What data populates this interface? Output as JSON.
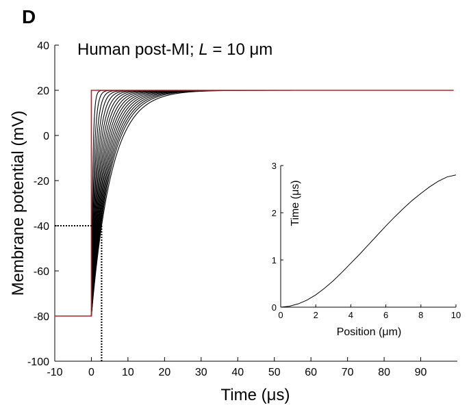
{
  "panel_label": "D",
  "chart_data": [
    {
      "type": "line",
      "title": "Human post-MI; L = 10 μm",
      "title_prefix": "Human post-MI; ",
      "title_italic": "L",
      "title_suffix": " = 10 μm",
      "xlabel": "Time (μs)",
      "ylabel": "Membrane potential (mV)",
      "xlim": [
        -10,
        100
      ],
      "ylim": [
        -100,
        40
      ],
      "xticks": [
        -10,
        0,
        10,
        20,
        30,
        40,
        50,
        60,
        70,
        80,
        90
      ],
      "yticks": [
        -100,
        -80,
        -60,
        -40,
        -20,
        0,
        20,
        40
      ],
      "grid": false,
      "colors": {
        "stimulus": "#b2242a",
        "responses": "#000000",
        "threshold_marker": "#000000"
      },
      "stimulus_trace": {
        "x": [
          -10,
          0,
          0,
          99
        ],
        "y": [
          -80,
          -80,
          20,
          20
        ]
      },
      "response_family": {
        "count": 18,
        "resting_potential": -80,
        "plateau": 20,
        "step_time": 0,
        "crossing_level": -40,
        "crossing_times": [
          0.2,
          0.35,
          0.5,
          0.65,
          0.8,
          0.95,
          1.1,
          1.25,
          1.4,
          1.55,
          1.7,
          1.85,
          2.0,
          2.15,
          2.3,
          2.45,
          2.6,
          2.8
        ],
        "note_values_mV_at_t": {
          "t": [
            0,
            1,
            2,
            4,
            6,
            10,
            15,
            20,
            25,
            100
          ],
          "last_curve_y": [
            -80,
            -60,
            -44,
            -18,
            0,
            12,
            17.5,
            19.3,
            19.8,
            20
          ]
        }
      },
      "threshold_guides": {
        "level_mV": -40,
        "time_us": 2.8
      }
    },
    {
      "type": "line",
      "title": "",
      "xlabel": "Position (μm)",
      "ylabel": "Time (μs)",
      "xlim": [
        0,
        10
      ],
      "ylim": [
        0,
        3
      ],
      "xticks": [
        0,
        2,
        4,
        6,
        8,
        10
      ],
      "yticks": [
        0,
        1,
        2,
        3
      ],
      "grid": false,
      "series": [
        {
          "x": [
            0,
            0.5,
            1,
            1.5,
            2,
            2.5,
            3,
            3.5,
            4,
            4.5,
            5,
            5.5,
            6,
            6.5,
            7,
            7.5,
            8,
            8.5,
            9,
            9.5,
            10
          ],
          "y": [
            0,
            0.02,
            0.07,
            0.15,
            0.26,
            0.4,
            0.56,
            0.74,
            0.93,
            1.12,
            1.32,
            1.52,
            1.72,
            1.91,
            2.09,
            2.26,
            2.41,
            2.55,
            2.67,
            2.76,
            2.8
          ]
        }
      ]
    }
  ]
}
